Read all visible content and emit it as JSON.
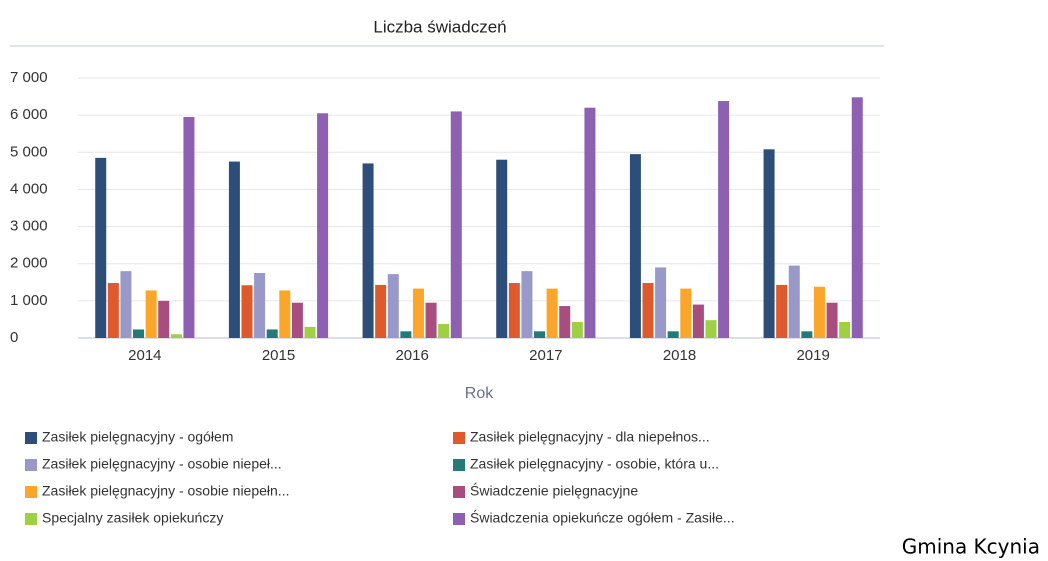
{
  "chart_data": {
    "type": "bar",
    "title": "Liczba świadczeń",
    "x_label": "Rok",
    "categories": [
      "2014",
      "2015",
      "2016",
      "2017",
      "2018",
      "2019"
    ],
    "series": [
      {
        "name": "Zasiłek pielęgnacyjny - ogółem",
        "color": "#2d4e78",
        "values": [
          4850,
          4750,
          4700,
          4800,
          4950,
          5080
        ]
      },
      {
        "name": "Zasiłek pielęgnacyjny - dla niepełnos...",
        "color": "#de5a2c",
        "values": [
          1480,
          1420,
          1430,
          1480,
          1480,
          1430
        ]
      },
      {
        "name": "Zasiłek pielęgnacyjny - osobie niepeł...",
        "color": "#9999c9",
        "values": [
          1800,
          1750,
          1720,
          1800,
          1900,
          1950
        ]
      },
      {
        "name": "Zasiłek pielęgnacyjny - osobie, która u...",
        "color": "#237a78",
        "values": [
          230,
          230,
          180,
          180,
          180,
          180
        ]
      },
      {
        "name": "Zasiłek pielęgnacyjny -  osobie niepełn...",
        "color": "#f9a62a",
        "values": [
          1280,
          1280,
          1330,
          1330,
          1330,
          1380
        ]
      },
      {
        "name": "Świadczenie pielęgnacyjne",
        "color": "#a84e7e",
        "values": [
          1000,
          950,
          950,
          860,
          900,
          950
        ]
      },
      {
        "name": "Specjalny zasiłek opiekuńczy",
        "color": "#9fcf43",
        "values": [
          100,
          300,
          380,
          430,
          480,
          430
        ]
      },
      {
        "name": "Świadczenia opiekuńcze ogółem - Zasiłe...",
        "color": "#8e60b2",
        "values": [
          5950,
          6050,
          6100,
          6200,
          6380,
          6480
        ]
      }
    ],
    "ylim": [
      0,
      7000
    ],
    "yticks": [
      0,
      {
        "value": 1000,
        "label": "1 000"
      },
      {
        "value": 2000,
        "label": "2 000"
      },
      {
        "value": 3000,
        "label": "3 000"
      },
      {
        "value": 4000,
        "label": "4 000"
      },
      {
        "value": 5000,
        "label": "5 000"
      },
      {
        "value": 6000,
        "label": "6 000"
      },
      {
        "value": 7000,
        "label": "7 000"
      }
    ],
    "grid": true,
    "legend": "bottom"
  },
  "caption": "Gmina Kcynia"
}
